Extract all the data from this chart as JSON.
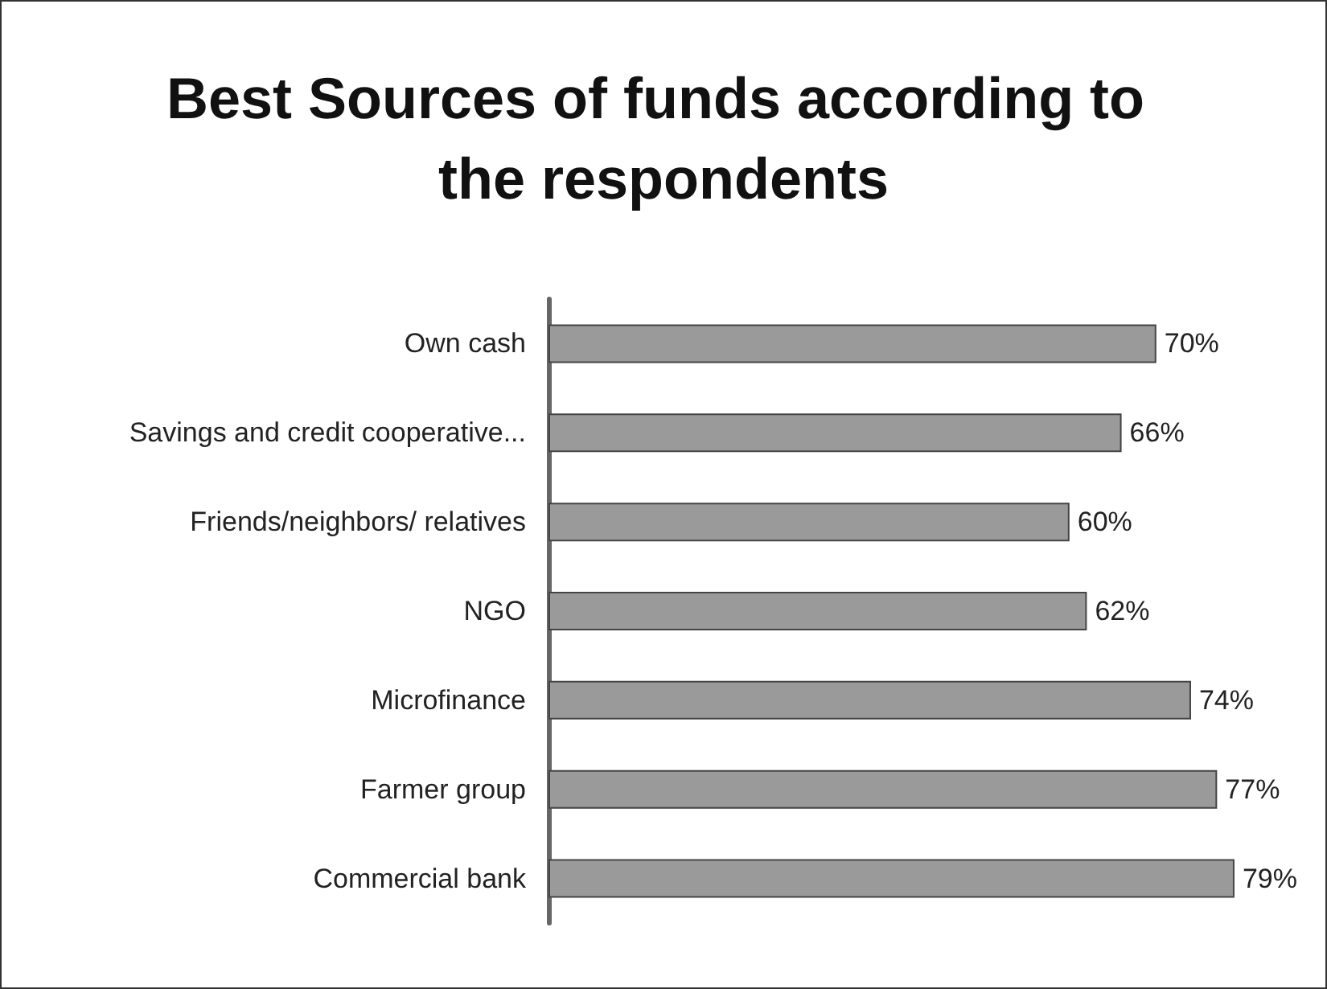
{
  "chart_data": {
    "type": "bar",
    "orientation": "horizontal",
    "title": "Best Sources of funds according to the respondents",
    "categories": [
      "Own cash",
      "Savings and credit cooperative...",
      "Friends/neighbors/ relatives",
      "NGO",
      "Microfinance",
      "Farmer group",
      "Commercial bank"
    ],
    "values": [
      70,
      66,
      60,
      62,
      74,
      77,
      79
    ],
    "value_labels": [
      "70%",
      "66%",
      "60%",
      "62%",
      "74%",
      "77%",
      "79%"
    ],
    "color": "#9a9a9a"
  }
}
